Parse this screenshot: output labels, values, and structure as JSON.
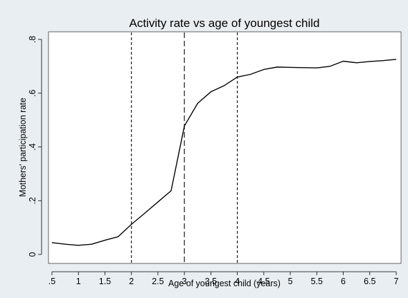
{
  "chart_data": {
    "type": "line",
    "title": "Activity rate vs age of youngest child",
    "xlabel": "Age of youngest child (years)",
    "ylabel": "Mothers' participation rate",
    "xlim": [
      0.5,
      7
    ],
    "ylim": [
      0,
      0.8
    ],
    "x_ticks": [
      0.5,
      1,
      1.5,
      2,
      2.5,
      3,
      3.5,
      4,
      4.5,
      5,
      5.5,
      6,
      6.5,
      7
    ],
    "x_tick_labels": [
      ".5",
      "1",
      "1.5",
      "2",
      "2.5",
      "3",
      "3.5",
      "4",
      "4.5",
      "5",
      "5.5",
      "6",
      "6.5",
      "7"
    ],
    "y_ticks": [
      0,
      0.2,
      0.4,
      0.6,
      0.8
    ],
    "y_tick_labels": [
      "0",
      ".2",
      ".4",
      ".6",
      ".8"
    ],
    "grid": false,
    "reference_lines": [
      {
        "x": 2,
        "style": "short-dash"
      },
      {
        "x": 3,
        "style": "long-dash"
      },
      {
        "x": 4,
        "style": "short-dash"
      }
    ],
    "series": [
      {
        "x": [
          0.5,
          0.75,
          1,
          1.25,
          1.5,
          1.75,
          2,
          2.25,
          2.5,
          2.75,
          3,
          3.25,
          3.5,
          3.75,
          4,
          4.25,
          4.5,
          4.75,
          5,
          5.25,
          5.5,
          5.75,
          6,
          6.25,
          6.5,
          6.75,
          7
        ],
        "values": [
          0.044,
          0.038,
          0.034,
          0.038,
          0.053,
          0.066,
          0.112,
          0.153,
          0.195,
          0.237,
          0.478,
          0.562,
          0.605,
          0.628,
          0.66,
          0.67,
          0.688,
          0.697,
          0.696,
          0.695,
          0.694,
          0.7,
          0.719,
          0.713,
          0.718,
          0.721,
          0.726
        ],
        "color": "#000000"
      }
    ],
    "colors": {
      "outer_background": "#e9eef2",
      "plot_background": "#ffffff",
      "line": "#000000"
    }
  }
}
